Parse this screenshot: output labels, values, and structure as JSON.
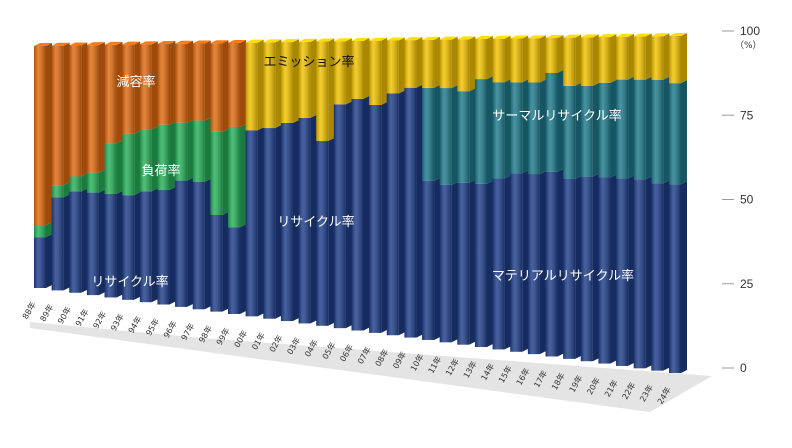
{
  "chart_data": {
    "type": "bar",
    "stacked": true,
    "categories": [
      "88年",
      "89年",
      "90年",
      "91年",
      "92年",
      "93年",
      "94年",
      "95年",
      "96年",
      "97年",
      "98年",
      "99年",
      "00年",
      "01年",
      "02年",
      "03年",
      "04年",
      "05年",
      "06年",
      "07年",
      "08年",
      "09年",
      "10年",
      "11年",
      "12年",
      "13年",
      "14年",
      "15年",
      "16年",
      "17年",
      "18年",
      "19年",
      "20年",
      "21年",
      "22年",
      "23年",
      "24年"
    ],
    "ylim": [
      0,
      100
    ],
    "yticks": [
      0,
      25,
      50,
      75,
      100
    ],
    "ytick_labels": [
      "0",
      "25",
      "50",
      "75",
      "100"
    ],
    "yunit": "（%）",
    "series": [
      {
        "key": "recycle",
        "color": "#1f3f8a",
        "values": [
          21,
          38,
          41,
          41,
          41,
          41,
          43,
          44,
          48,
          48,
          36,
          32,
          68,
          69,
          71,
          73,
          65,
          78,
          80,
          78,
          82,
          84,
          53,
          52,
          53,
          53,
          55,
          57,
          57,
          58,
          56,
          57,
          57,
          57,
          57,
          56,
          56
        ]
      },
      {
        "key": "load",
        "color": "#27b05a",
        "values": [
          5,
          5,
          6,
          8,
          20,
          24,
          24,
          25,
          22,
          23,
          31,
          37,
          0,
          0,
          0,
          0,
          0,
          0,
          0,
          0,
          0,
          0,
          0,
          0,
          0,
          0,
          0,
          0,
          0,
          0,
          0,
          0,
          0,
          0,
          0,
          0,
          0
        ]
      },
      {
        "key": "reduction",
        "color": "#e06a10",
        "values": [
          74,
          57,
          53,
          51,
          39,
          35,
          33,
          31,
          30,
          29,
          33,
          31,
          0,
          0,
          0,
          0,
          0,
          0,
          0,
          0,
          0,
          0,
          0,
          0,
          0,
          0,
          0,
          0,
          0,
          0,
          0,
          0,
          0,
          0,
          0,
          0,
          0
        ]
      },
      {
        "key": "thermal",
        "color": "#1f7a8c",
        "values": [
          0,
          0,
          0,
          0,
          0,
          0,
          0,
          0,
          0,
          0,
          0,
          0,
          0,
          0,
          0,
          0,
          0,
          0,
          0,
          0,
          0,
          0,
          31,
          32,
          30,
          34,
          31,
          29,
          29,
          31,
          29,
          28,
          29,
          30,
          30,
          31,
          30
        ]
      },
      {
        "key": "emission",
        "color": "#f2c200",
        "values": [
          0,
          0,
          0,
          0,
          0,
          0,
          0,
          0,
          0,
          0,
          0,
          0,
          32,
          31,
          29,
          27,
          35,
          22,
          20,
          22,
          18,
          16,
          16,
          16,
          17,
          13,
          14,
          14,
          14,
          11,
          15,
          15,
          14,
          13,
          13,
          13,
          14
        ]
      }
    ],
    "annotations": {
      "reduction": "減容率",
      "load": "負荷率",
      "recycle_early": "リサイクル率",
      "emission": "エミッション率",
      "recycle_mid": "リサイクル率",
      "thermal": "サーマルリサイクル率",
      "material": "マテリアルリサイクル率"
    }
  }
}
